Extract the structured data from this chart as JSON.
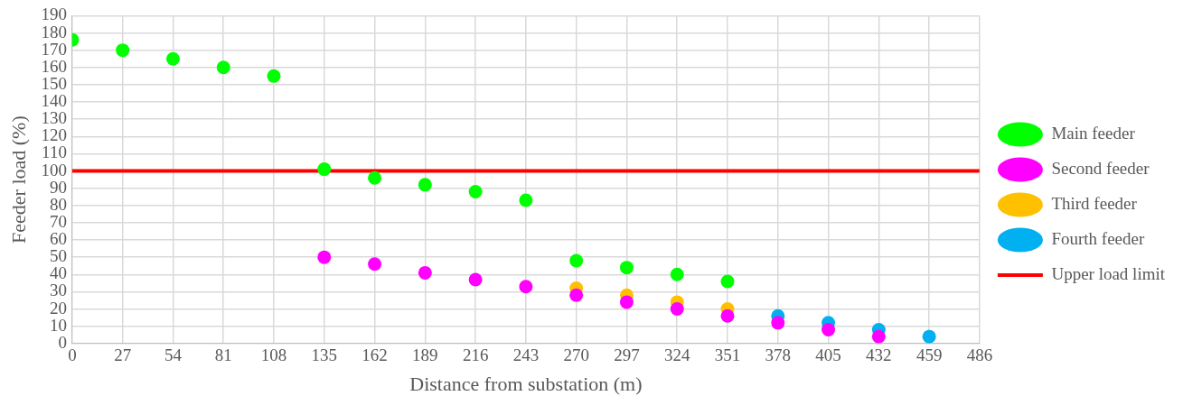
{
  "chart_data": {
    "type": "scatter",
    "xlabel": "Distance from substation (m)",
    "ylabel": "Feeder load (%)",
    "x": [
      0,
      27,
      54,
      81,
      108,
      135,
      162,
      189,
      216,
      243,
      270,
      297,
      324,
      351,
      378,
      405,
      432,
      459
    ],
    "xlim": [
      0,
      486
    ],
    "xticks": [
      0,
      27,
      54,
      81,
      108,
      135,
      162,
      189,
      216,
      243,
      270,
      297,
      324,
      351,
      378,
      405,
      432,
      459,
      486
    ],
    "ylim": [
      0,
      190
    ],
    "yticks": [
      0,
      10,
      20,
      30,
      40,
      50,
      60,
      70,
      80,
      90,
      100,
      110,
      120,
      130,
      140,
      150,
      160,
      170,
      180,
      190
    ],
    "grid": true,
    "legend": "right",
    "marker": "circle",
    "series": [
      {
        "name": "Main feeder",
        "color": "#00ff00",
        "values": [
          176,
          170,
          165,
          160,
          155,
          101,
          96,
          92,
          88,
          83,
          48,
          44,
          40,
          36,
          null,
          null,
          null,
          null
        ]
      },
      {
        "name": "Second feeder",
        "color": "#ff00ff",
        "values": [
          null,
          null,
          null,
          null,
          null,
          50,
          46,
          41,
          37,
          33,
          28,
          24,
          20,
          16,
          12,
          8,
          4,
          null
        ]
      },
      {
        "name": "Third feeder",
        "color": "#ffc000",
        "values": [
          null,
          null,
          null,
          null,
          null,
          null,
          null,
          null,
          null,
          null,
          32,
          28,
          24,
          20,
          null,
          null,
          null,
          null
        ]
      },
      {
        "name": "Fourth feeder",
        "color": "#00b0f0",
        "values": [
          null,
          null,
          null,
          null,
          null,
          null,
          null,
          null,
          null,
          null,
          null,
          null,
          null,
          null,
          16,
          12,
          8,
          4
        ]
      },
      {
        "name": "Upper load limit",
        "type": "line",
        "color": "#ff0000",
        "x": [
          0,
          486
        ],
        "values": [
          100,
          100
        ],
        "marker": "none"
      }
    ]
  }
}
